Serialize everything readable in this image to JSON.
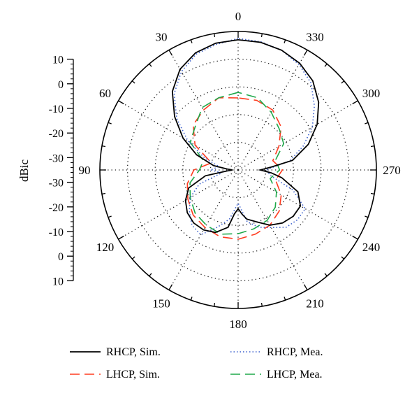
{
  "chart_data": {
    "type": "polar",
    "radial_axis": {
      "label": "dBic",
      "range": [
        -40,
        10
      ],
      "ticks": [
        10,
        0,
        -10,
        -20,
        -30,
        -40
      ],
      "scale_tick_labels_top": [
        "10",
        "0",
        "-10",
        "-20",
        "-30"
      ],
      "scale_tick_labels_bottom": [
        "-30",
        "-20",
        "-10",
        "0",
        "10"
      ]
    },
    "angular_axis": {
      "direction": "counterclockwise",
      "zero_at": "top",
      "step_deg": 30,
      "labels": [
        "0",
        "30",
        "60",
        "90",
        "120",
        "150",
        "180",
        "210",
        "240",
        "270",
        "300",
        "330"
      ],
      "label_angles": [
        0,
        30,
        60,
        90,
        120,
        150,
        180,
        210,
        240,
        270,
        300,
        330
      ]
    },
    "grid": true,
    "legend_position": "bottom",
    "series": [
      {
        "name": "RHCP, Sim.",
        "color": "#000000",
        "style": "solid",
        "points": [
          [
            0,
            7
          ],
          [
            10,
            6.5
          ],
          [
            20,
            5
          ],
          [
            30,
            2
          ],
          [
            40,
            -3
          ],
          [
            50,
            -10
          ],
          [
            60,
            -17
          ],
          [
            70,
            -24
          ],
          [
            80,
            -31
          ],
          [
            85,
            -36
          ],
          [
            90,
            -38
          ],
          [
            95,
            -36
          ],
          [
            100,
            -28
          ],
          [
            110,
            -21
          ],
          [
            120,
            -18
          ],
          [
            130,
            -16
          ],
          [
            140,
            -15
          ],
          [
            150,
            -15
          ],
          [
            160,
            -16
          ],
          [
            170,
            -19
          ],
          [
            175,
            -24
          ],
          [
            180,
            -26
          ],
          [
            185,
            -24
          ],
          [
            190,
            -22
          ],
          [
            200,
            -20
          ],
          [
            210,
            -17
          ],
          [
            220,
            -15
          ],
          [
            230,
            -14
          ],
          [
            240,
            -14
          ],
          [
            250,
            -17
          ],
          [
            260,
            -24
          ],
          [
            265,
            -28
          ],
          [
            270,
            -32
          ],
          [
            275,
            -28
          ],
          [
            280,
            -20
          ],
          [
            290,
            -13
          ],
          [
            300,
            -7
          ],
          [
            310,
            -2
          ],
          [
            320,
            2
          ],
          [
            330,
            4.5
          ],
          [
            340,
            6
          ],
          [
            350,
            6.8
          ],
          [
            360,
            7
          ]
        ]
      },
      {
        "name": "RHCP, Mea.",
        "color": "#3a5fcd",
        "style": "dotted",
        "points": [
          [
            0,
            7.5
          ],
          [
            10,
            6
          ],
          [
            20,
            4.5
          ],
          [
            30,
            1
          ],
          [
            40,
            -4
          ],
          [
            50,
            -11
          ],
          [
            60,
            -19
          ],
          [
            70,
            -27
          ],
          [
            80,
            -33
          ],
          [
            90,
            -30
          ],
          [
            100,
            -34
          ],
          [
            110,
            -25
          ],
          [
            120,
            -20
          ],
          [
            130,
            -17
          ],
          [
            140,
            -14
          ],
          [
            150,
            -13
          ],
          [
            160,
            -18
          ],
          [
            170,
            -22
          ],
          [
            180,
            -28
          ],
          [
            190,
            -21
          ],
          [
            200,
            -18
          ],
          [
            210,
            -16
          ],
          [
            220,
            -13
          ],
          [
            230,
            -12
          ],
          [
            240,
            -12
          ],
          [
            250,
            -19
          ],
          [
            260,
            -28
          ],
          [
            270,
            -30
          ],
          [
            280,
            -21
          ],
          [
            290,
            -15
          ],
          [
            300,
            -9
          ],
          [
            310,
            -4
          ],
          [
            320,
            1
          ],
          [
            330,
            4
          ],
          [
            340,
            6
          ],
          [
            350,
            7
          ],
          [
            360,
            7.5
          ]
        ]
      },
      {
        "name": "LHCP, Sim.",
        "color": "#ff3b1f",
        "style": "dashed",
        "points": [
          [
            0,
            -14
          ],
          [
            15,
            -13
          ],
          [
            30,
            -15
          ],
          [
            45,
            -17
          ],
          [
            60,
            -22
          ],
          [
            75,
            -30
          ],
          [
            90,
            -24
          ],
          [
            105,
            -21
          ],
          [
            120,
            -19
          ],
          [
            135,
            -17
          ],
          [
            150,
            -16
          ],
          [
            165,
            -15
          ],
          [
            180,
            -15
          ],
          [
            195,
            -16
          ],
          [
            210,
            -17
          ],
          [
            225,
            -19
          ],
          [
            240,
            -22
          ],
          [
            255,
            -26
          ],
          [
            270,
            -24
          ],
          [
            285,
            -27
          ],
          [
            300,
            -23
          ],
          [
            315,
            -18
          ],
          [
            330,
            -15
          ],
          [
            345,
            -14
          ],
          [
            360,
            -14
          ]
        ]
      },
      {
        "name": "LHCP, Mea.",
        "color": "#1fa84a",
        "style": "dashed",
        "points": [
          [
            0,
            -12
          ],
          [
            15,
            -13
          ],
          [
            30,
            -14
          ],
          [
            45,
            -18
          ],
          [
            60,
            -20
          ],
          [
            75,
            -27
          ],
          [
            90,
            -26
          ],
          [
            105,
            -22
          ],
          [
            120,
            -20
          ],
          [
            135,
            -18
          ],
          [
            150,
            -17
          ],
          [
            165,
            -16
          ],
          [
            180,
            -17
          ],
          [
            195,
            -18
          ],
          [
            210,
            -19
          ],
          [
            225,
            -21
          ],
          [
            240,
            -24
          ],
          [
            255,
            -28
          ],
          [
            270,
            -25
          ],
          [
            285,
            -26
          ],
          [
            300,
            -21
          ],
          [
            315,
            -19
          ],
          [
            330,
            -16
          ],
          [
            345,
            -13
          ],
          [
            360,
            -12
          ]
        ]
      }
    ]
  }
}
